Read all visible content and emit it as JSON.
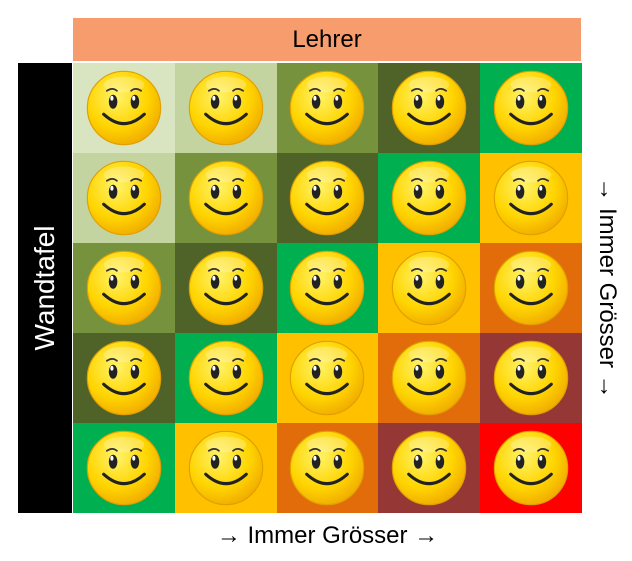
{
  "teacher_label": "Lehrer",
  "board_label": "Wandtafel",
  "right_axis_label": "→ Immer Grösser →",
  "bottom_axis_label": "→ Immer Grösser →",
  "cell_icon": "smiley-face-icon",
  "grid": {
    "rows": [
      [
        "#d9e4c1",
        "#c4d4a0",
        "#76923c",
        "#4f6228",
        "#00b050"
      ],
      [
        "#c4d4a0",
        "#76923c",
        "#4f6228",
        "#00b050",
        "#ffc000"
      ],
      [
        "#76923c",
        "#4f6228",
        "#00b050",
        "#ffc000",
        "#e26b0a"
      ],
      [
        "#4f6228",
        "#00b050",
        "#ffc000",
        "#e26b0a",
        "#953735"
      ],
      [
        "#00b050",
        "#ffc000",
        "#e26b0a",
        "#953735",
        "#ff0000"
      ]
    ]
  }
}
